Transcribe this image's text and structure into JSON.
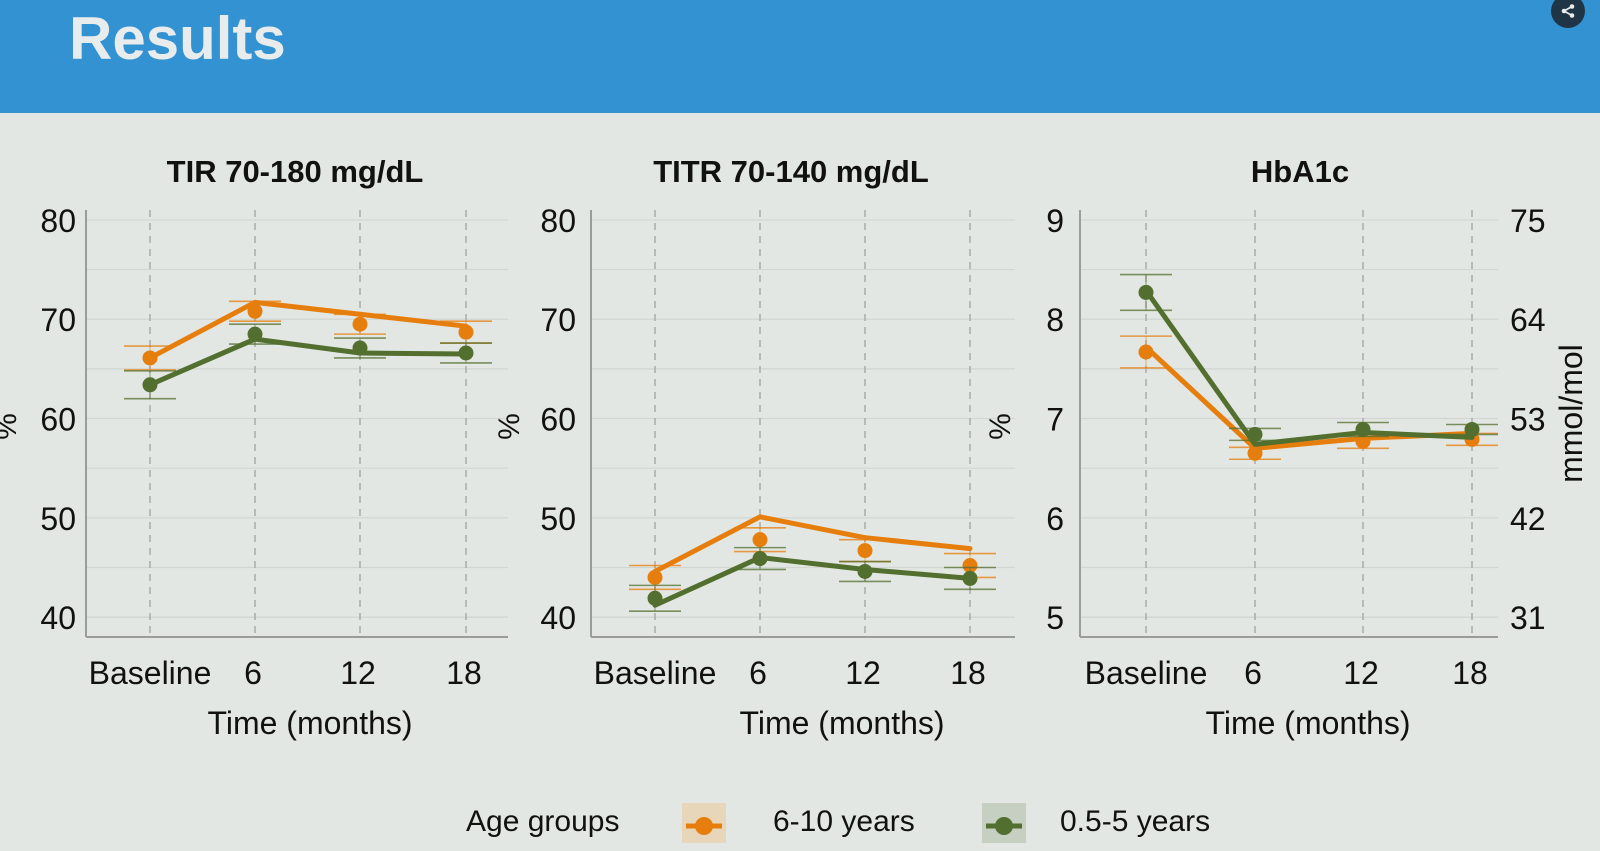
{
  "header": {
    "title": "Results"
  },
  "share_button": {
    "icon": "share-icon"
  },
  "legend": {
    "title": "Age groups",
    "items": [
      {
        "label": "6-10 years",
        "color": "#e67e0d",
        "swatch_bg": "#e8d6bb"
      },
      {
        "label": "0.5-5 years",
        "color": "#536f2f",
        "swatch_bg": "#c5cfc2"
      }
    ]
  },
  "chart_data": [
    {
      "type": "line",
      "title": "TIR 70-180 mg/dL",
      "xlabel": "Time (months)",
      "ylabel": "%",
      "categories": [
        "Baseline",
        "6",
        "12",
        "18"
      ],
      "ylim": [
        38,
        81
      ],
      "yticks": [
        40,
        50,
        60,
        70,
        80
      ],
      "grid_minor_step": 5,
      "series": [
        {
          "name": "6-10 years",
          "color": "#e67e0d",
          "points": [
            66.1,
            70.8,
            69.5,
            68.7
          ],
          "error": [
            1.2,
            1.0,
            1.0,
            1.1
          ],
          "line": [
            66.1,
            71.7,
            70.5,
            69.3
          ]
        },
        {
          "name": "0.5-5 years",
          "color": "#536f2f",
          "points": [
            63.4,
            68.5,
            67.1,
            66.6
          ],
          "error": [
            1.4,
            1.0,
            1.0,
            1.0
          ],
          "line": [
            63.4,
            68.0,
            66.6,
            66.5
          ]
        }
      ]
    },
    {
      "type": "line",
      "title": "TITR 70-140 mg/dL",
      "xlabel": "Time (months)",
      "ylabel": "%",
      "categories": [
        "Baseline",
        "6",
        "12",
        "18"
      ],
      "ylim": [
        38,
        81
      ],
      "yticks": [
        40,
        50,
        60,
        70,
        80
      ],
      "grid_minor_step": 5,
      "series": [
        {
          "name": "6-10 years",
          "color": "#e67e0d",
          "points": [
            44.0,
            47.8,
            46.7,
            45.2
          ],
          "error": [
            1.2,
            1.2,
            1.1,
            1.2
          ],
          "line": [
            44.6,
            50.1,
            48.0,
            46.9
          ]
        },
        {
          "name": "0.5-5 years",
          "color": "#536f2f",
          "points": [
            41.9,
            45.9,
            44.6,
            43.9
          ],
          "error": [
            1.3,
            1.1,
            1.0,
            1.1
          ],
          "line": [
            41.2,
            46.0,
            44.8,
            43.9
          ]
        }
      ]
    },
    {
      "type": "line",
      "title": "HbA1c",
      "xlabel": "Time (months)",
      "ylabel": "%",
      "ylabel_right": "mmol/mol",
      "categories": [
        "Baseline",
        "6",
        "12",
        "18"
      ],
      "ylim": [
        4.8,
        9.1
      ],
      "yticks": [
        5,
        6,
        7,
        8,
        9
      ],
      "yticks_right": [
        {
          "value": 5,
          "label": "31"
        },
        {
          "value": 6,
          "label": "42"
        },
        {
          "value": 7,
          "label": "53"
        },
        {
          "value": 8,
          "label": "64"
        },
        {
          "value": 9,
          "label": "75"
        }
      ],
      "grid_minor_step": 0.5,
      "series": [
        {
          "name": "6-10 years",
          "color": "#e67e0d",
          "points": [
            7.67,
            6.65,
            6.77,
            6.79
          ],
          "error": [
            0.16,
            0.06,
            0.07,
            0.06
          ],
          "line": [
            7.72,
            6.7,
            6.8,
            6.85
          ]
        },
        {
          "name": "0.5-5 years",
          "color": "#536f2f",
          "points": [
            8.27,
            6.84,
            6.89,
            6.89
          ],
          "error": [
            0.18,
            0.06,
            0.07,
            0.05
          ],
          "line": [
            8.29,
            6.74,
            6.86,
            6.81
          ]
        }
      ]
    }
  ]
}
